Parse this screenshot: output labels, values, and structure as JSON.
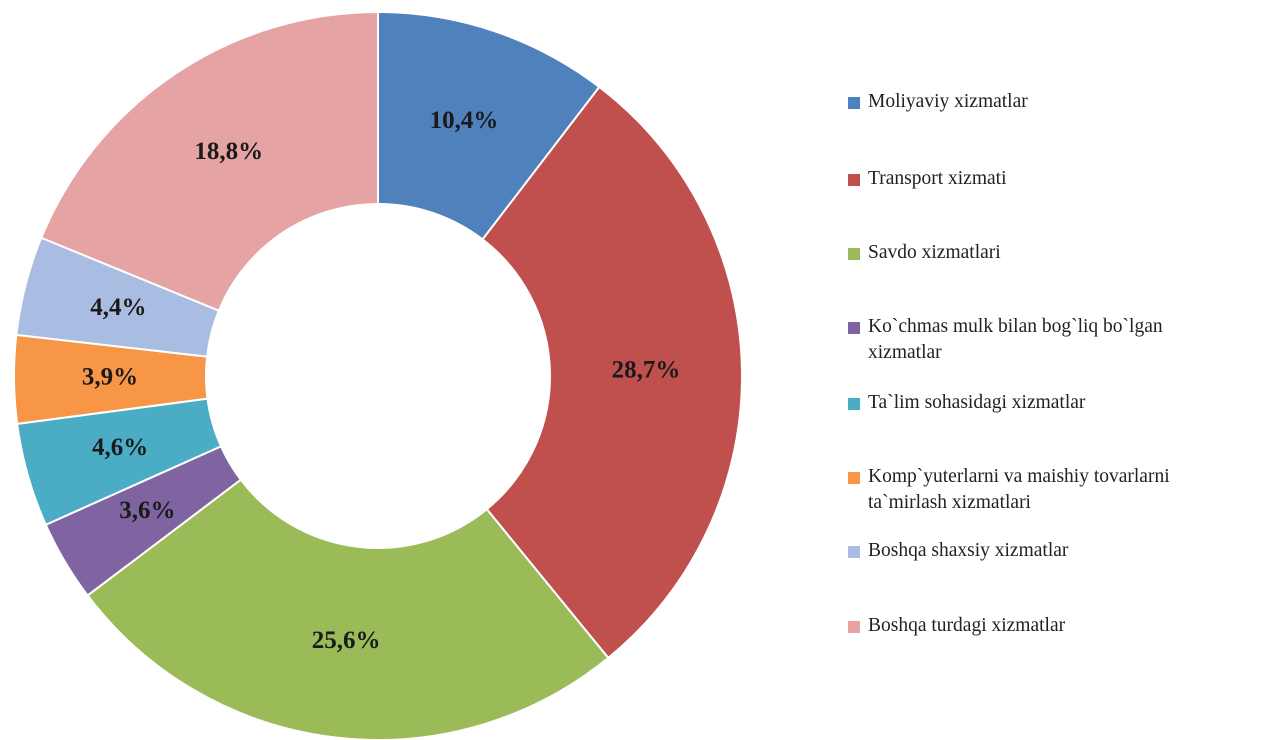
{
  "chart_data": {
    "type": "donut",
    "categories": [
      "Moliyaviy xizmatlar",
      "Transport xizmati",
      "Savdo xizmatlari",
      "Ko`chmas mulk bilan bog`liq bo`lgan xizmatlar",
      "Ta`lim sohasidagi xizmatlar",
      "Komp`yuterlarni va maishiy tovarlarni ta`mirlash xizmatlari",
      "Boshqa shaxsiy xizmatlar",
      "Boshqa turdagi xizmatlar"
    ],
    "values": [
      10.4,
      28.7,
      25.6,
      3.6,
      4.6,
      3.9,
      4.4,
      18.8
    ],
    "value_labels": [
      "10,4%",
      "28,7%",
      "25,6%",
      "3,6%",
      "4,6%",
      "3,9%",
      "4,4%",
      "18,8%"
    ],
    "colors": [
      "#4f81bd",
      "#c0504d",
      "#9bbb59",
      "#8064a2",
      "#4bacc6",
      "#f79646",
      "#a9bde3",
      "#e5a3a3"
    ],
    "legend": "right"
  }
}
